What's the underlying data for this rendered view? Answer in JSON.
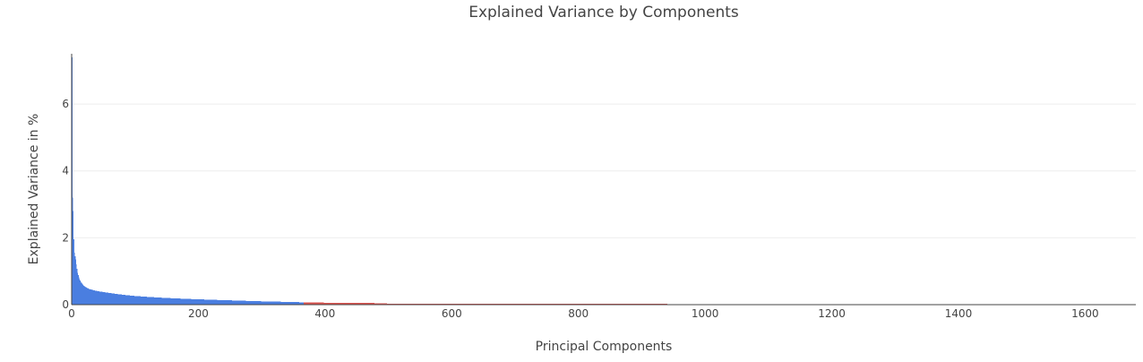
{
  "chart_data": {
    "type": "bar",
    "title": "Explained Variance by Components",
    "xlabel": "Principal Components",
    "ylabel": "Explained Variance in %",
    "xlim": [
      0,
      1680
    ],
    "ylim": [
      0,
      7.45
    ],
    "x_ticks": [
      0,
      200,
      400,
      600,
      800,
      1000,
      1200,
      1400,
      1600
    ],
    "y_ticks": [
      0,
      2,
      4,
      6
    ],
    "grid": "horizontal",
    "legend": "none",
    "colors": {
      "primary": "#4a7ee0",
      "secondary": "#d9534f"
    },
    "series": [
      {
        "color": "#4a7ee0",
        "x_range": [
          1,
          366
        ],
        "keypoints": [
          [
            1,
            7.4
          ],
          [
            2,
            3.2
          ],
          [
            3,
            2.8
          ],
          [
            4,
            1.95
          ],
          [
            5,
            1.55
          ],
          [
            6,
            1.45
          ],
          [
            7,
            1.35
          ],
          [
            8,
            1.2
          ],
          [
            10,
            0.95
          ],
          [
            12,
            0.82
          ],
          [
            15,
            0.68
          ],
          [
            20,
            0.56
          ],
          [
            25,
            0.5
          ],
          [
            30,
            0.46
          ],
          [
            40,
            0.41
          ],
          [
            50,
            0.38
          ],
          [
            60,
            0.35
          ],
          [
            80,
            0.3
          ],
          [
            100,
            0.26
          ],
          [
            150,
            0.2
          ],
          [
            200,
            0.16
          ],
          [
            250,
            0.13
          ],
          [
            300,
            0.1
          ],
          [
            350,
            0.08
          ],
          [
            366,
            0.07
          ]
        ]
      },
      {
        "color": "#d9534f",
        "x_range": [
          367,
          940
        ],
        "keypoints": [
          [
            367,
            0.07
          ],
          [
            400,
            0.06
          ],
          [
            450,
            0.05
          ],
          [
            497,
            0.045
          ],
          [
            500,
            0.02
          ],
          [
            600,
            0.017
          ],
          [
            700,
            0.014
          ],
          [
            800,
            0.011
          ],
          [
            900,
            0.009
          ],
          [
            940,
            0.008
          ]
        ]
      }
    ]
  }
}
